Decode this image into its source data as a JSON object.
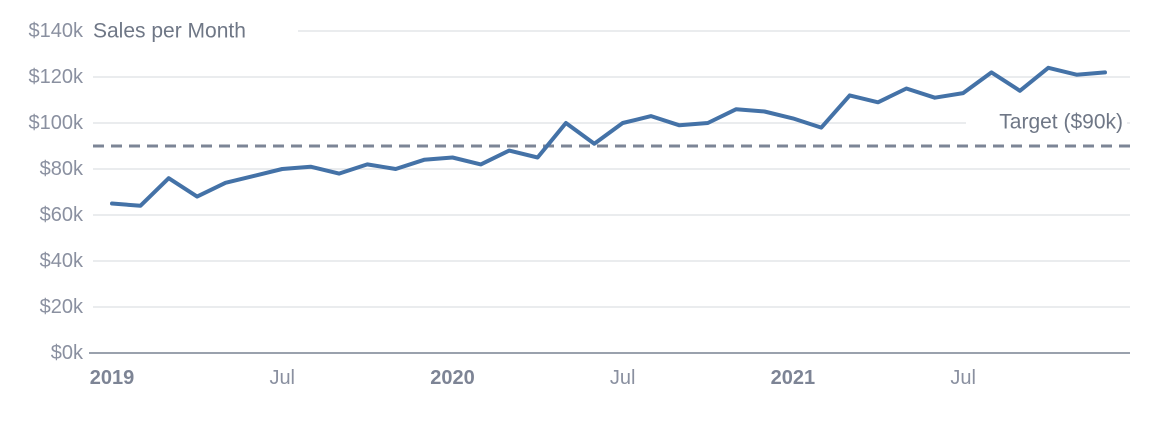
{
  "chart_data": {
    "type": "line",
    "title": "Sales per Month",
    "categories": [
      "2019-01",
      "2019-02",
      "2019-03",
      "2019-04",
      "2019-05",
      "2019-06",
      "2019-07",
      "2019-08",
      "2019-09",
      "2019-10",
      "2019-11",
      "2019-12",
      "2020-01",
      "2020-02",
      "2020-03",
      "2020-04",
      "2020-05",
      "2020-06",
      "2020-07",
      "2020-08",
      "2020-09",
      "2020-10",
      "2020-11",
      "2020-12",
      "2021-01",
      "2021-02",
      "2021-03",
      "2021-04",
      "2021-05",
      "2021-06",
      "2021-07",
      "2021-08",
      "2021-09",
      "2021-10",
      "2021-11",
      "2021-12"
    ],
    "series": [
      {
        "name": "Sales per Month",
        "unit": "$k",
        "color": "#4472a7",
        "values": [
          65,
          64,
          76,
          68,
          74,
          77,
          80,
          81,
          78,
          82,
          80,
          84,
          85,
          82,
          88,
          85,
          100,
          91,
          100,
          103,
          99,
          100,
          106,
          105,
          102,
          98,
          112,
          109,
          115,
          111,
          113,
          122,
          114,
          124,
          121,
          122
        ]
      }
    ],
    "target": {
      "label": "Target ($90k)",
      "value": 90,
      "color": "#7c8596",
      "style": "dashed"
    },
    "ylim": [
      0,
      140
    ],
    "y_tick_step": 20,
    "y_tick_labels": [
      "$0k",
      "$20k",
      "$40k",
      "$60k",
      "$80k",
      "$100k",
      "$120k",
      "$140k"
    ],
    "x_ticks": [
      {
        "month_index": 0,
        "label": "2019",
        "bold": true
      },
      {
        "month_index": 6,
        "label": "Jul",
        "bold": false
      },
      {
        "month_index": 12,
        "label": "2020",
        "bold": true
      },
      {
        "month_index": 18,
        "label": "Jul",
        "bold": false
      },
      {
        "month_index": 24,
        "label": "2021",
        "bold": true
      },
      {
        "month_index": 30,
        "label": "Jul",
        "bold": false
      }
    ],
    "grid": true,
    "legend_position": "none",
    "colors": {
      "line": "#4472a7",
      "grid": "#e4e5e9",
      "axis": "#9aa1ad",
      "target_line": "#7c8596",
      "tick_text": "#8a90a0",
      "year_text": "#7d8495",
      "title_text": "#6f7786"
    }
  }
}
